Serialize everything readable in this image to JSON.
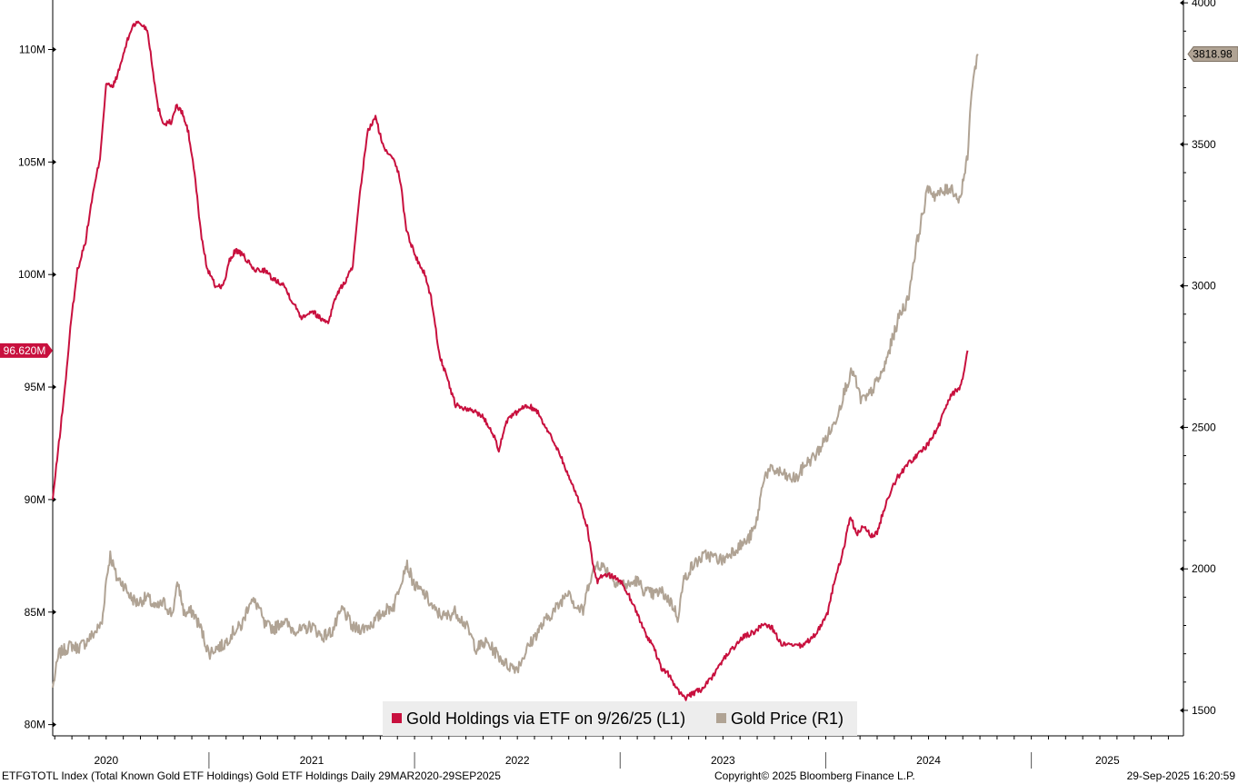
{
  "colors": {
    "etf_line": "#c8103e",
    "price_line": "#b0a394",
    "axis": "#000000",
    "legend_bg": "#ededed"
  },
  "chart_data": {
    "type": "line",
    "title": "",
    "left_axis": {
      "ylim": [
        79.5,
        112.2
      ],
      "ticks": [
        80,
        85,
        90,
        95,
        100,
        105,
        110
      ],
      "tick_labels": [
        "80M",
        "85M",
        "90M",
        "95M",
        "100M",
        "105M",
        "110M"
      ]
    },
    "right_axis": {
      "ylim": [
        1410,
        4010
      ],
      "ticks": [
        1500,
        2000,
        2500,
        3000,
        3500,
        4000
      ],
      "tick_labels": [
        "1500",
        "2000",
        "2500",
        "3000",
        "3500",
        "4000"
      ]
    },
    "x_axis": {
      "xlim": [
        2020.24,
        2025.74
      ],
      "year_labels": [
        "2020",
        "2021",
        "2022",
        "2023",
        "2024",
        "2025"
      ],
      "year_label_positions": [
        2020.5,
        2021.5,
        2022.5,
        2023.5,
        2024.5,
        2025.37
      ],
      "year_boundaries": [
        2021.0,
        2022.0,
        2023.0,
        2024.0,
        2025.0
      ]
    },
    "grid": false,
    "legend_position": "bottom-center",
    "series": [
      {
        "name": "Gold Holdings via ETF on 9/26/25 (L1)",
        "axis": "left",
        "color": "#c8103e",
        "last_value_label": "96.620M",
        "points": [
          [
            2020.24,
            90.0
          ],
          [
            2020.27,
            92.5
          ],
          [
            2020.3,
            95.0
          ],
          [
            2020.33,
            98.0
          ],
          [
            2020.36,
            100.2
          ],
          [
            2020.4,
            101.5
          ],
          [
            2020.43,
            103.3
          ],
          [
            2020.47,
            105.2
          ],
          [
            2020.5,
            108.5
          ],
          [
            2020.53,
            108.3
          ],
          [
            2020.56,
            109.0
          ],
          [
            2020.6,
            110.3
          ],
          [
            2020.63,
            111.1
          ],
          [
            2020.66,
            111.2
          ],
          [
            2020.7,
            110.9
          ],
          [
            2020.72,
            109.6
          ],
          [
            2020.75,
            107.5
          ],
          [
            2020.78,
            106.7
          ],
          [
            2020.82,
            106.8
          ],
          [
            2020.84,
            107.5
          ],
          [
            2020.87,
            107.2
          ],
          [
            2020.9,
            106.3
          ],
          [
            2020.93,
            104.5
          ],
          [
            2020.96,
            101.9
          ],
          [
            2020.99,
            100.3
          ],
          [
            2021.03,
            99.5
          ],
          [
            2021.07,
            99.5
          ],
          [
            2021.1,
            100.6
          ],
          [
            2021.13,
            101.1
          ],
          [
            2021.17,
            100.8
          ],
          [
            2021.22,
            100.2
          ],
          [
            2021.27,
            100.2
          ],
          [
            2021.31,
            99.8
          ],
          [
            2021.36,
            99.6
          ],
          [
            2021.4,
            98.9
          ],
          [
            2021.45,
            98.1
          ],
          [
            2021.5,
            98.4
          ],
          [
            2021.55,
            98.0
          ],
          [
            2021.58,
            97.9
          ],
          [
            2021.62,
            99.1
          ],
          [
            2021.67,
            99.8
          ],
          [
            2021.7,
            100.4
          ],
          [
            2021.73,
            103.2
          ],
          [
            2021.77,
            106.3
          ],
          [
            2021.81,
            107.0
          ],
          [
            2021.85,
            105.6
          ],
          [
            2021.9,
            105.2
          ],
          [
            2021.93,
            104.2
          ],
          [
            2021.96,
            102.0
          ],
          [
            2022.0,
            100.9
          ],
          [
            2022.05,
            100.0
          ],
          [
            2022.08,
            99.0
          ],
          [
            2022.12,
            96.5
          ],
          [
            2022.15,
            95.6
          ],
          [
            2022.2,
            94.2
          ],
          [
            2022.25,
            94.0
          ],
          [
            2022.3,
            93.9
          ],
          [
            2022.33,
            93.7
          ],
          [
            2022.38,
            93.0
          ],
          [
            2022.41,
            92.2
          ],
          [
            2022.45,
            93.5
          ],
          [
            2022.5,
            93.9
          ],
          [
            2022.55,
            94.2
          ],
          [
            2022.6,
            93.9
          ],
          [
            2022.65,
            93.0
          ],
          [
            2022.7,
            92.2
          ],
          [
            2022.75,
            91.0
          ],
          [
            2022.79,
            90.2
          ],
          [
            2022.84,
            88.8
          ],
          [
            2022.87,
            87.0
          ],
          [
            2022.89,
            86.3
          ],
          [
            2022.92,
            86.7
          ],
          [
            2022.96,
            86.6
          ],
          [
            2023.0,
            86.4
          ],
          [
            2023.04,
            85.8
          ],
          [
            2023.08,
            85.0
          ],
          [
            2023.12,
            84.1
          ],
          [
            2023.16,
            83.5
          ],
          [
            2023.2,
            82.5
          ],
          [
            2023.24,
            82.2
          ],
          [
            2023.28,
            81.5
          ],
          [
            2023.32,
            81.2
          ],
          [
            2023.36,
            81.4
          ],
          [
            2023.4,
            81.6
          ],
          [
            2023.45,
            82.1
          ],
          [
            2023.5,
            82.9
          ],
          [
            2023.55,
            83.4
          ],
          [
            2023.6,
            83.9
          ],
          [
            2023.65,
            84.1
          ],
          [
            2023.7,
            84.5
          ],
          [
            2023.74,
            84.3
          ],
          [
            2023.78,
            83.6
          ],
          [
            2023.83,
            83.5
          ],
          [
            2023.88,
            83.5
          ],
          [
            2023.93,
            83.8
          ],
          [
            2023.97,
            84.3
          ],
          [
            2024.01,
            85.0
          ],
          [
            2024.04,
            86.3
          ],
          [
            2024.08,
            87.5
          ],
          [
            2024.12,
            89.3
          ],
          [
            2024.15,
            88.4
          ],
          [
            2024.18,
            88.8
          ],
          [
            2024.22,
            88.4
          ],
          [
            2024.25,
            88.5
          ],
          [
            2024.28,
            89.5
          ],
          [
            2024.32,
            90.5
          ],
          [
            2024.35,
            91.0
          ],
          [
            2024.4,
            91.6
          ],
          [
            2024.45,
            92.0
          ],
          [
            2024.5,
            92.5
          ],
          [
            2024.55,
            93.3
          ],
          [
            2024.6,
            94.5
          ],
          [
            2024.65,
            95.0
          ],
          [
            2024.67,
            95.6
          ],
          [
            2024.69,
            96.62
          ]
        ]
      },
      {
        "name": "Gold Price (R1)",
        "axis": "right",
        "color": "#b0a394",
        "last_value_label": "3818.98",
        "points": [
          [
            2020.24,
            1580
          ],
          [
            2020.27,
            1700
          ],
          [
            2020.3,
            1715
          ],
          [
            2020.33,
            1730
          ],
          [
            2020.36,
            1720
          ],
          [
            2020.4,
            1740
          ],
          [
            2020.45,
            1780
          ],
          [
            2020.48,
            1810
          ],
          [
            2020.5,
            1960
          ],
          [
            2020.52,
            2050
          ],
          [
            2020.55,
            1970
          ],
          [
            2020.58,
            1950
          ],
          [
            2020.62,
            1900
          ],
          [
            2020.65,
            1880
          ],
          [
            2020.7,
            1900
          ],
          [
            2020.74,
            1860
          ],
          [
            2020.78,
            1880
          ],
          [
            2020.82,
            1840
          ],
          [
            2020.85,
            1950
          ],
          [
            2020.88,
            1840
          ],
          [
            2020.92,
            1850
          ],
          [
            2020.96,
            1790
          ],
          [
            2021.0,
            1700
          ],
          [
            2021.03,
            1720
          ],
          [
            2021.07,
            1730
          ],
          [
            2021.12,
            1780
          ],
          [
            2021.16,
            1800
          ],
          [
            2021.2,
            1890
          ],
          [
            2021.24,
            1870
          ],
          [
            2021.27,
            1800
          ],
          [
            2021.32,
            1790
          ],
          [
            2021.36,
            1820
          ],
          [
            2021.4,
            1790
          ],
          [
            2021.45,
            1780
          ],
          [
            2021.5,
            1800
          ],
          [
            2021.55,
            1760
          ],
          [
            2021.6,
            1780
          ],
          [
            2021.65,
            1860
          ],
          [
            2021.7,
            1790
          ],
          [
            2021.75,
            1790
          ],
          [
            2021.8,
            1810
          ],
          [
            2021.85,
            1850
          ],
          [
            2021.9,
            1870
          ],
          [
            2021.93,
            1950
          ],
          [
            2021.96,
            2020
          ],
          [
            2022.0,
            1940
          ],
          [
            2022.05,
            1910
          ],
          [
            2022.1,
            1850
          ],
          [
            2022.15,
            1830
          ],
          [
            2022.2,
            1850
          ],
          [
            2022.25,
            1800
          ],
          [
            2022.3,
            1720
          ],
          [
            2022.35,
            1740
          ],
          [
            2022.4,
            1700
          ],
          [
            2022.45,
            1660
          ],
          [
            2022.5,
            1650
          ],
          [
            2022.55,
            1720
          ],
          [
            2022.6,
            1780
          ],
          [
            2022.65,
            1830
          ],
          [
            2022.7,
            1870
          ],
          [
            2022.75,
            1930
          ],
          [
            2022.78,
            1870
          ],
          [
            2022.82,
            1850
          ],
          [
            2022.85,
            1960
          ],
          [
            2022.89,
            2020
          ],
          [
            2022.93,
            2000
          ],
          [
            2022.97,
            1960
          ],
          [
            2023.0,
            1950
          ],
          [
            2023.04,
            1940
          ],
          [
            2023.08,
            1960
          ],
          [
            2023.12,
            1920
          ],
          [
            2023.16,
            1910
          ],
          [
            2023.2,
            1920
          ],
          [
            2023.25,
            1880
          ],
          [
            2023.28,
            1830
          ],
          [
            2023.31,
            1960
          ],
          [
            2023.34,
            2000
          ],
          [
            2023.38,
            2030
          ],
          [
            2023.42,
            2050
          ],
          [
            2023.46,
            2040
          ],
          [
            2023.5,
            2030
          ],
          [
            2023.54,
            2060
          ],
          [
            2023.58,
            2080
          ],
          [
            2023.62,
            2100
          ],
          [
            2023.66,
            2150
          ],
          [
            2023.7,
            2330
          ],
          [
            2023.74,
            2350
          ],
          [
            2023.78,
            2340
          ],
          [
            2023.82,
            2320
          ],
          [
            2023.86,
            2320
          ],
          [
            2023.9,
            2370
          ],
          [
            2023.95,
            2400
          ],
          [
            2024.0,
            2460
          ],
          [
            2024.04,
            2510
          ],
          [
            2024.08,
            2600
          ],
          [
            2024.1,
            2650
          ],
          [
            2024.13,
            2700
          ],
          [
            2024.17,
            2600
          ],
          [
            2024.2,
            2600
          ],
          [
            2024.24,
            2650
          ],
          [
            2024.28,
            2700
          ],
          [
            2024.32,
            2800
          ],
          [
            2024.36,
            2900
          ],
          [
            2024.4,
            2950
          ],
          [
            2024.43,
            3100
          ],
          [
            2024.47,
            3250
          ],
          [
            2024.5,
            3350
          ],
          [
            2024.53,
            3320
          ],
          [
            2024.57,
            3330
          ],
          [
            2024.61,
            3350
          ],
          [
            2024.65,
            3300
          ],
          [
            2024.67,
            3380
          ],
          [
            2024.69,
            3450
          ],
          [
            2024.71,
            3700
          ],
          [
            2024.73,
            3780
          ],
          [
            2024.74,
            3819
          ]
        ]
      }
    ]
  },
  "legend": {
    "items": [
      {
        "label": "Gold Holdings via ETF on 9/26/25 (L1)",
        "color": "#c8103e"
      },
      {
        "label": "Gold Price (R1)",
        "color": "#b0a394"
      }
    ]
  },
  "footer": {
    "left": "ETFGTOTL Index (Total Known Gold ETF Holdings) Gold ETF Holdings  Daily 29MAR2020-29SEP2025",
    "center": "Copyright© 2025 Bloomberg Finance L.P.",
    "right": "29-Sep-2025 16:20:59"
  }
}
